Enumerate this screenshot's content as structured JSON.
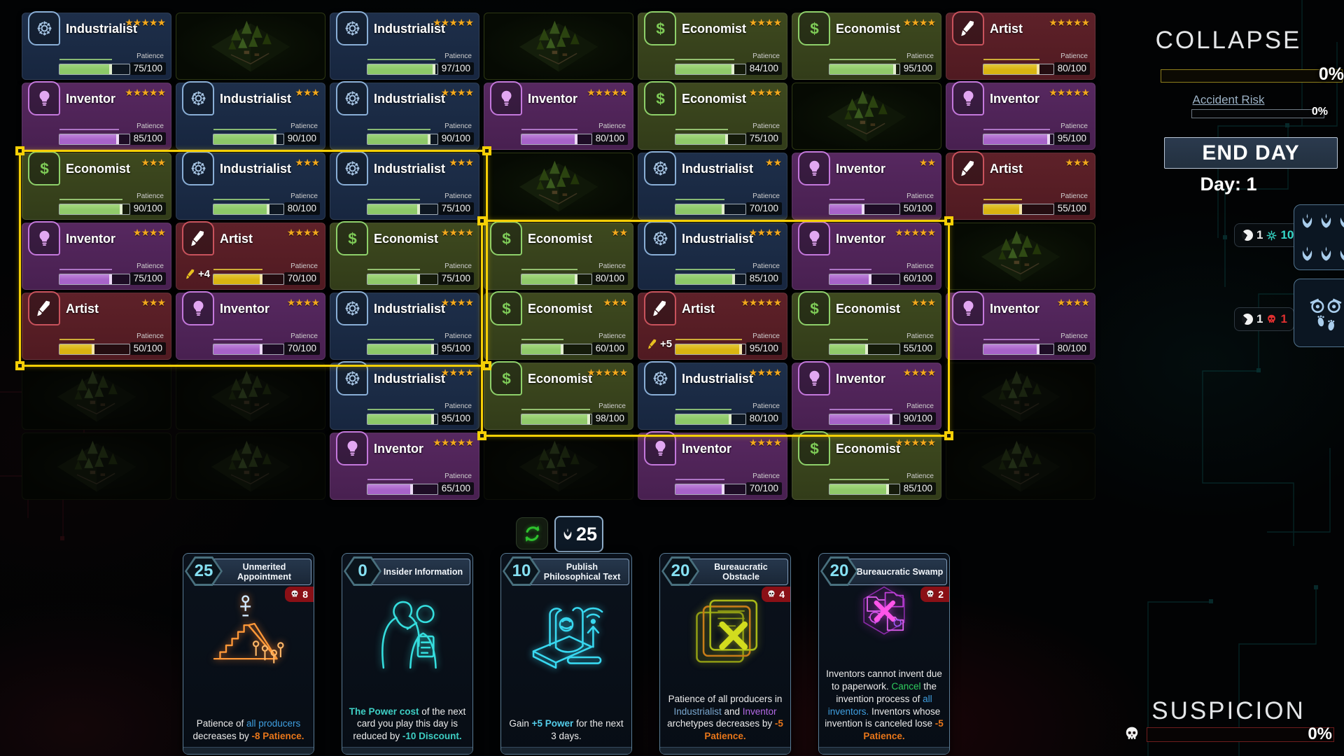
{
  "archetypes": {
    "Industrialist": {
      "icon": "gear",
      "card_color": "#1e2f4a",
      "accent": "#89aed6",
      "bar_color": "#8cc868"
    },
    "Inventor": {
      "icon": "bulb",
      "card_color": "#572860",
      "accent": "#c478dc",
      "bar_color": "#a763c9"
    },
    "Economist": {
      "icon": "dollar",
      "card_color": "#3e491f",
      "accent": "#8ed06a",
      "bar_color": "#90ca6a"
    },
    "Artist": {
      "icon": "brush",
      "card_color": "#5e2129",
      "accent": "#c8525c",
      "bar_color": "#d9b411"
    }
  },
  "grid": {
    "patience_label": "Patience",
    "patience_max": "100",
    "rows": [
      [
        {
          "a": "Industrialist",
          "s": 5,
          "p": 75
        },
        {
          "tile": true
        },
        {
          "a": "Industrialist",
          "s": 5,
          "p": 97
        },
        {
          "tile": true
        },
        {
          "a": "Economist",
          "s": 4,
          "p": 84
        },
        {
          "a": "Economist",
          "s": 4,
          "p": 95
        },
        {
          "a": "Artist",
          "s": 5,
          "p": 80
        }
      ],
      [
        {
          "a": "Inventor",
          "s": 5,
          "p": 85
        },
        {
          "a": "Industrialist",
          "s": 3,
          "p": 90
        },
        {
          "a": "Industrialist",
          "s": 4,
          "p": 90
        },
        {
          "a": "Inventor",
          "s": 5,
          "p": 80
        },
        {
          "a": "Economist",
          "s": 4,
          "p": 75
        },
        {
          "tile": true
        },
        {
          "a": "Inventor",
          "s": 5,
          "p": 95
        }
      ],
      [
        {
          "a": "Economist",
          "s": 3,
          "p": 90
        },
        {
          "a": "Industrialist",
          "s": 3,
          "p": 80
        },
        {
          "a": "Industrialist",
          "s": 3,
          "p": 75
        },
        {
          "tile": true
        },
        {
          "a": "Industrialist",
          "s": 2,
          "p": 70
        },
        {
          "a": "Inventor",
          "s": 2,
          "p": 50
        },
        {
          "a": "Artist",
          "s": 3,
          "p": 55
        }
      ],
      [
        {
          "a": "Inventor",
          "s": 4,
          "p": 75
        },
        {
          "a": "Artist",
          "s": 4,
          "p": 70,
          "m": "+4"
        },
        {
          "a": "Economist",
          "s": 4,
          "p": 75
        },
        {
          "a": "Economist",
          "s": 2,
          "p": 80
        },
        {
          "a": "Industrialist",
          "s": 4,
          "p": 85
        },
        {
          "a": "Inventor",
          "s": 5,
          "p": 60
        },
        {
          "tile": true
        }
      ],
      [
        {
          "a": "Artist",
          "s": 3,
          "p": 50
        },
        {
          "a": "Inventor",
          "s": 4,
          "p": 70
        },
        {
          "a": "Industrialist",
          "s": 4,
          "p": 95
        },
        {
          "a": "Economist",
          "s": 3,
          "p": 60
        },
        {
          "a": "Artist",
          "s": 5,
          "p": 95,
          "m": "+5"
        },
        {
          "a": "Economist",
          "s": 3,
          "p": 55
        },
        {
          "a": "Inventor",
          "s": 4,
          "p": 80
        }
      ],
      [
        {
          "tile": true,
          "dim": true
        },
        {
          "tile": true,
          "dim": true
        },
        {
          "a": "Industrialist",
          "s": 4,
          "p": 95
        },
        {
          "a": "Economist",
          "s": 5,
          "p": 98
        },
        {
          "a": "Industrialist",
          "s": 4,
          "p": 80
        },
        {
          "a": "Inventor",
          "s": 4,
          "p": 90
        },
        {
          "tile": true,
          "dim": true
        }
      ],
      [
        {
          "tile": true,
          "dim": true
        },
        {
          "tile": true,
          "dim": true
        },
        {
          "a": "Inventor",
          "s": 5,
          "p": 65
        },
        {
          "tile": true,
          "dim": true
        },
        {
          "a": "Inventor",
          "s": 4,
          "p": 70
        },
        {
          "a": "Economist",
          "s": 5,
          "p": 85
        },
        {
          "tile": true,
          "dim": true
        }
      ]
    ]
  },
  "selection": {
    "color": "#f5cf06",
    "rectangle_count": 2
  },
  "sidebar": {
    "collapse": {
      "label": "COLLAPSE",
      "value": "0%"
    },
    "accident": {
      "label": "Accident Risk",
      "value": "0%"
    },
    "end_day_button": "END DAY",
    "day_counter": "Day: 1",
    "power_pill": {
      "duration": "1",
      "value": "10"
    },
    "threat_pill": {
      "duration": "1",
      "value": "1"
    },
    "suspicion": {
      "label": "SUSPICION",
      "value": "0%"
    }
  },
  "hand": {
    "power_counter": "25",
    "cards": [
      {
        "cost": "25",
        "title": "Unmerited Appointment",
        "skull": "8",
        "art": "pyramid",
        "desc": [
          {
            "t": "Patience of "
          },
          {
            "t": "all producers",
            "c": "blue"
          },
          {
            "t": " decreases by "
          },
          {
            "t": "-8 Patience.",
            "c": "orange"
          }
        ]
      },
      {
        "cost": "0",
        "title": "Insider Information",
        "art": "whisper",
        "desc": [
          {
            "t": "The Power cost",
            "c": "teal",
            "b": 1
          },
          {
            "t": " of the next card you play this day is reduced by "
          },
          {
            "t": "-10 Discount.",
            "c": "teal",
            "b": 1
          }
        ]
      },
      {
        "cost": "10",
        "title": "Publish Philosophical Text",
        "art": "scroll",
        "desc": [
          {
            "t": "Gain "
          },
          {
            "t": "+5 Power",
            "c": "cyan",
            "b": 1
          },
          {
            "t": " for the next 3 days."
          }
        ]
      },
      {
        "cost": "20",
        "title": "Bureaucratic Obstacle",
        "skull": "4",
        "art": "docs",
        "desc": [
          {
            "t": "Patience of all producers in "
          },
          {
            "t": "Industrialist",
            "c": "steel"
          },
          {
            "t": " and "
          },
          {
            "t": "Inventor",
            "c": "purple"
          },
          {
            "t": " archetypes decreases by "
          },
          {
            "t": "-5 Patience.",
            "c": "orange"
          }
        ]
      },
      {
        "cost": "20",
        "title": "Bureaucratic Swamp",
        "skull": "2",
        "art": "folders",
        "tall": 1,
        "desc": [
          {
            "t": "Inventors cannot invent due to paperwork. "
          },
          {
            "t": "Cancel",
            "c": "green"
          },
          {
            "t": " the invention process of "
          },
          {
            "t": "all inventors.",
            "c": "blue"
          },
          {
            "t": " Inventors whose invention is canceled lose "
          },
          {
            "t": "-5 Patience.",
            "c": "orange"
          }
        ]
      }
    ]
  },
  "icons": {
    "gear-icon": "outline cog",
    "bulb-icon": "lightbulb",
    "dollar-icon": "$",
    "brush-icon": "paintbrush",
    "star-icon": "★",
    "laurel-icon": "laurel wreath",
    "skull-icon": "skull",
    "clock-icon": "pie timer circle",
    "power-icon": "teal gear burst",
    "recycle-icon": "green recycle arrows",
    "owl-icon": "owl eyes with footprints",
    "forest-icon": "isometric forest tile"
  }
}
